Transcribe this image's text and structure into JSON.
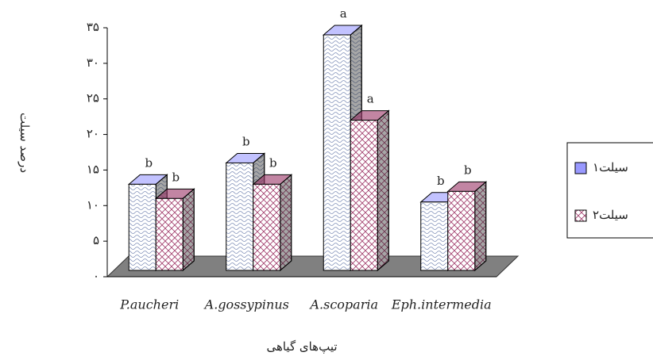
{
  "chart_data": {
    "type": "bar3d",
    "y_label": "درصد سیلت",
    "x_label": "تیپ‌های گیاهی",
    "categories": [
      "P.aucheri",
      "A.gossypinus",
      "A.scoparia",
      "Eph.intermedia"
    ],
    "series": [
      {
        "name": "سیلت۱",
        "color": "#9999ff",
        "values": [
          13,
          16,
          34,
          10.5
        ],
        "annotations": [
          "b",
          "b",
          "a",
          "b"
        ]
      },
      {
        "name": "سیلت۲",
        "color": "#993366",
        "values": [
          11,
          13,
          22,
          12
        ],
        "annotations": [
          "b",
          "b",
          "a",
          "b"
        ]
      }
    ],
    "ylim": [
      0,
      35
    ],
    "yticks": [
      {
        "value": 0,
        "label": "۰"
      },
      {
        "value": 5,
        "label": "۵"
      },
      {
        "value": 10,
        "label": "۱۰"
      },
      {
        "value": 15,
        "label": "۱۵"
      },
      {
        "value": 20,
        "label": "۲۰"
      },
      {
        "value": 25,
        "label": "۲۵"
      },
      {
        "value": 30,
        "label": "۳۰"
      },
      {
        "value": 35,
        "label": "۳۵"
      }
    ],
    "legend": "right"
  }
}
